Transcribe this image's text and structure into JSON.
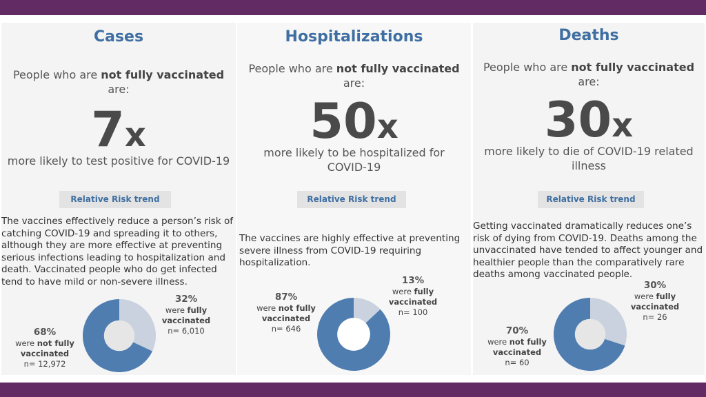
{
  "cards": [
    {
      "title": "Cases",
      "lead_pre": "People who are ",
      "lead_bold": "not fully vaccinated",
      "lead_post": "are:",
      "multiplier_number": "7",
      "multiplier_suffix": "x",
      "sub_line1": "more likely to test positive for COVID-19",
      "sub_line2": "",
      "button": "Relative Risk trend",
      "para_lines": [
        "The vaccines effectively reduce a person’s risk of",
        "catching COVID-19 and spreading it to others,",
        "although they are more effective at preventing",
        "serious infections leading to hospitalization and",
        "death. Vaccinated people who do get infected",
        "tend to have mild or non-severe illness."
      ],
      "vaccinated": {
        "pct": "32%",
        "were": "were",
        "bold": "fully",
        "tail": "vaccinated",
        "n": "n= 6,010",
        "fraction": 0.32
      },
      "unvaccinated": {
        "pct": "68%",
        "were": "were",
        "bold": "not fully",
        "tail": "vaccinated",
        "n": "n= 12,972",
        "fraction": 0.68
      }
    },
    {
      "title": "Hospitalizations",
      "lead_pre": "People who are ",
      "lead_bold": "not fully vaccinated",
      "lead_post": "are:",
      "multiplier_number": "50",
      "multiplier_suffix": "x",
      "sub_line1": "more likely to be hospitalized for",
      "sub_line2": "COVID-19",
      "button": "Relative Risk trend",
      "para_lines": [
        "The vaccines are highly effective at preventing",
        "severe illness from COVID-19 requiring",
        "hospitalization."
      ],
      "vaccinated": {
        "pct": "13%",
        "were": "were",
        "bold": "fully",
        "tail": "vaccinated",
        "n": "n= 100",
        "fraction": 0.13
      },
      "unvaccinated": {
        "pct": "87%",
        "were": "were",
        "bold": "not fully",
        "tail": "vaccinated",
        "n": "n= 646",
        "fraction": 0.87
      }
    },
    {
      "title": "Deaths",
      "lead_pre": "People who are ",
      "lead_bold": "not fully vaccinated",
      "lead_post": "are:",
      "multiplier_number": "30",
      "multiplier_suffix": "x",
      "sub_line1": "more likely to die of COVID-19 related",
      "sub_line2": "illness",
      "button": "Relative Risk trend",
      "para_lines": [
        "Getting vaccinated dramatically reduces one’s",
        "risk of dying from COVID-19. Deaths among the",
        "unvaccinated have tended to affect younger and",
        "healthier people than the comparatively rare",
        "deaths among vaccinated people."
      ],
      "vaccinated": {
        "pct": "30%",
        "were": "were",
        "bold": "fully",
        "tail": "vaccinated",
        "n": "n= 26",
        "fraction": 0.3
      },
      "unvaccinated": {
        "pct": "70%",
        "were": "were",
        "bold": "not fully",
        "tail": "vaccinated",
        "n": "n= 60",
        "fraction": 0.7
      }
    }
  ],
  "colors": {
    "band": "#622b63",
    "title": "#3f6fa2",
    "unvaccinated_slice": "#4f7db0",
    "vaccinated_slice": "#c9d2de",
    "donut_hole": "#e6e6e6"
  }
}
